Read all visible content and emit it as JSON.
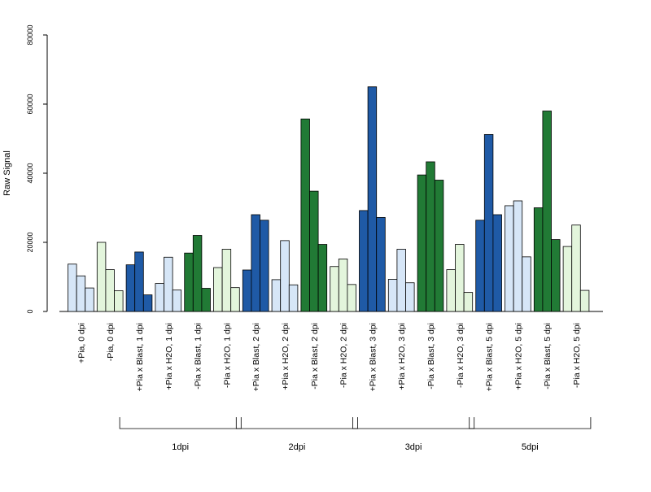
{
  "chart_data": {
    "type": "bar",
    "title": "",
    "ylabel": "Raw Signal",
    "xlabel": "",
    "ylim": [
      0,
      80000
    ],
    "yticks": [
      0,
      20000,
      40000,
      60000,
      80000
    ],
    "grid": false,
    "legend": "none",
    "categories": [
      "+Pia, 0 dpi",
      "-Pia, 0 dpi",
      "+Pia x Blast, 1 dpi",
      "+Pia x H2O, 1 dpi",
      "-Pia x Blast, 1 dpi",
      "-Pia x H2O, 1 dpi",
      "+Pia x Blast, 2 dpi",
      "+Pia x H2O, 2 dpi",
      "-Pia x Blast, 2 dpi",
      "-Pia x H2O, 2 dpi",
      "+Pia x Blast, 3 dpi",
      "+Pia x H2O, 3 dpi",
      "-Pia x Blast, 3 dpi",
      "-Pia x H2O, 3 dpi",
      "+Pia x Blast, 5 dpi",
      "+Pia x H2O, 5 dpi",
      "-Pia x Blast, 5 dpi",
      "-Pia x H2O, 5 dpi"
    ],
    "category_colors": [
      "#d6e6f7",
      "#e3f5dc",
      "#1f5aa6",
      "#d6e6f7",
      "#217a35",
      "#e3f5dc",
      "#1f5aa6",
      "#d6e6f7",
      "#217a35",
      "#e3f5dc",
      "#1f5aa6",
      "#d6e6f7",
      "#217a35",
      "#e3f5dc",
      "#1f5aa6",
      "#d6e6f7",
      "#217a35",
      "#e3f5dc"
    ],
    "values": [
      [
        13700,
        10300,
        6800
      ],
      [
        20000,
        12100,
        6000
      ],
      [
        13500,
        17200,
        4800
      ],
      [
        8100,
        15700,
        6200
      ],
      [
        16900,
        22000,
        6700
      ],
      [
        12700,
        18000,
        6900
      ],
      [
        12000,
        28000,
        26400
      ],
      [
        9200,
        20500,
        7700
      ],
      [
        55700,
        34800,
        19400
      ],
      [
        13000,
        15200,
        7800
      ],
      [
        29200,
        65000,
        27200
      ],
      [
        9300,
        18000,
        8300
      ],
      [
        39500,
        43300,
        38000
      ],
      [
        12100,
        19400,
        5500
      ],
      [
        26400,
        51200,
        28000
      ],
      [
        30600,
        32000,
        15800
      ],
      [
        30000,
        58000,
        20800
      ],
      [
        18800,
        25000,
        6100
      ]
    ],
    "groups": [
      {
        "label": "1dpi",
        "start": 2,
        "end": 5
      },
      {
        "label": "2dpi",
        "start": 6,
        "end": 9
      },
      {
        "label": "3dpi",
        "start": 10,
        "end": 13
      },
      {
        "label": "5dpi",
        "start": 14,
        "end": 17
      }
    ]
  }
}
